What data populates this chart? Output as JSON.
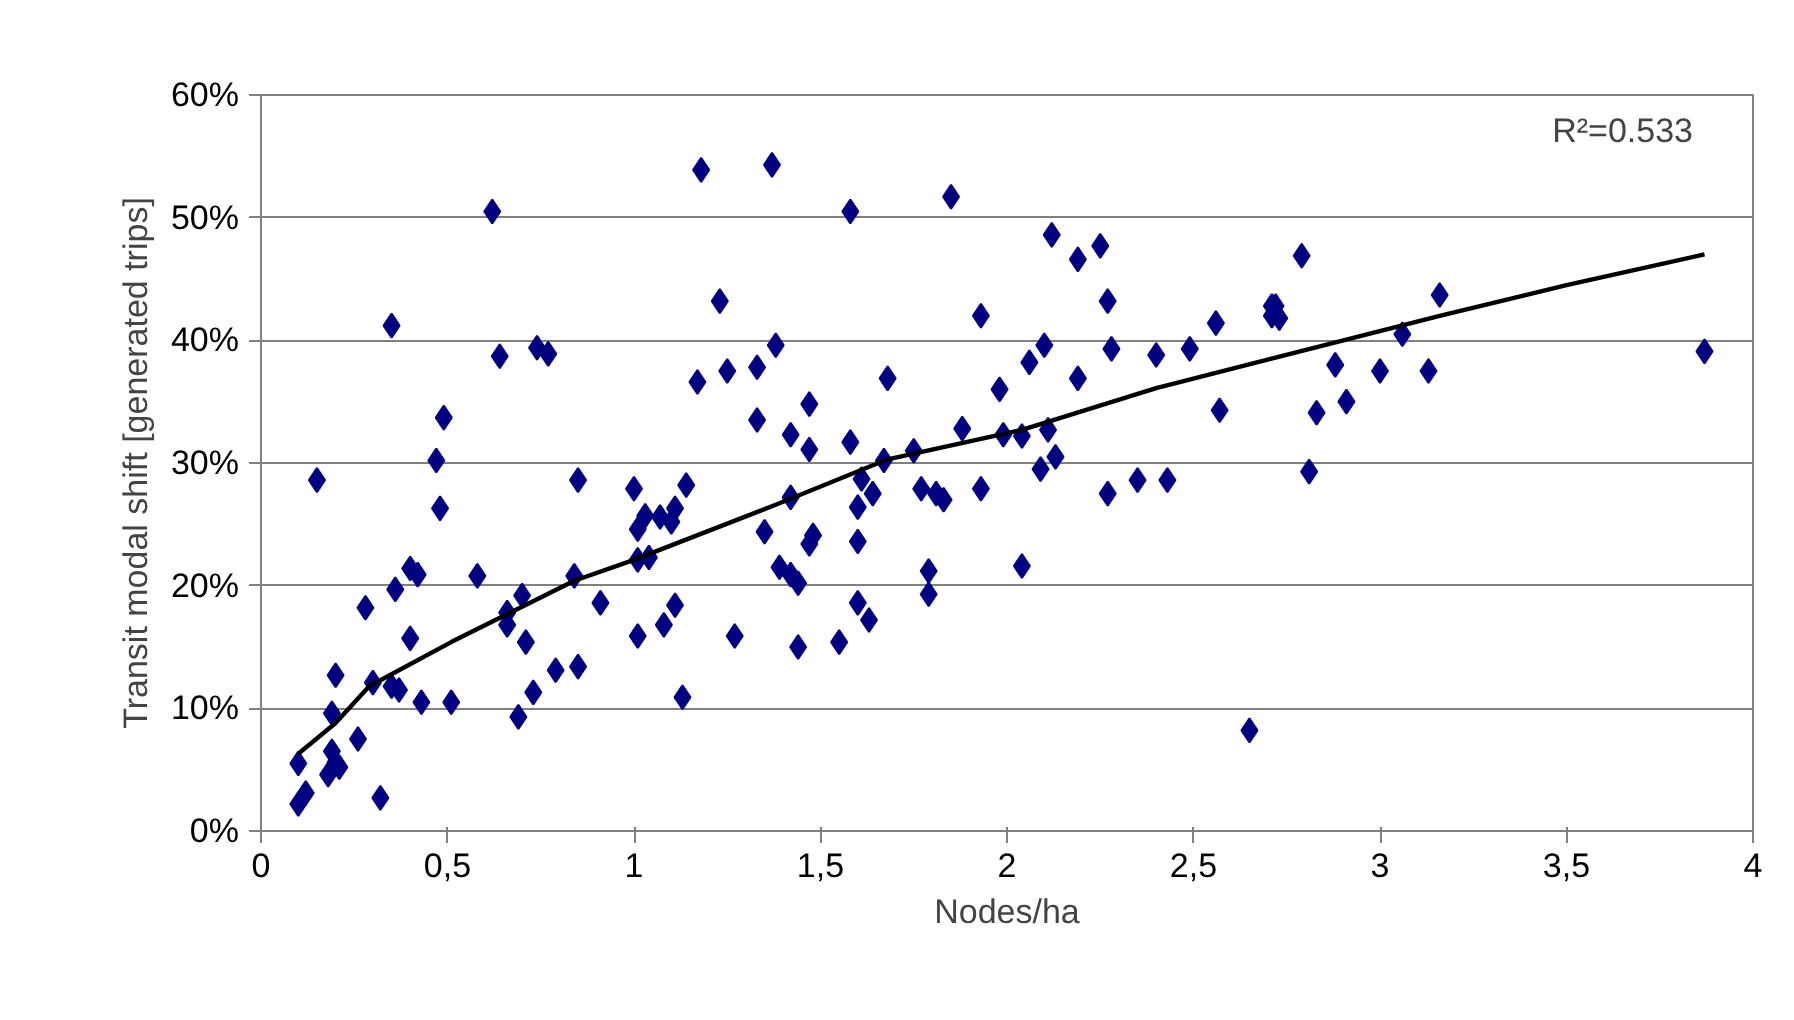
{
  "chart_data": {
    "type": "scatter",
    "xlabel": "Nodes/ha",
    "ylabel": "Transit modal shift [generated trips]",
    "annotations": [
      "R²=0.533"
    ],
    "xlim": [
      0,
      4
    ],
    "ylim": [
      0,
      60
    ],
    "xticks": [
      0,
      {
        "value": 0.5,
        "label": "0,5"
      },
      1,
      {
        "value": 1.5,
        "label": "1,5"
      },
      2,
      {
        "value": 2.5,
        "label": "2,5"
      },
      3,
      {
        "value": 3.5,
        "label": "3,5"
      },
      4
    ],
    "yticks": [
      {
        "value": 0,
        "label": "0%"
      },
      {
        "value": 10,
        "label": "10%"
      },
      {
        "value": 20,
        "label": "20%"
      },
      {
        "value": 30,
        "label": "30%"
      },
      {
        "value": 40,
        "label": "40%"
      },
      {
        "value": 50,
        "label": "50%"
      },
      {
        "value": 60,
        "label": "60%"
      }
    ],
    "grid": "y",
    "series": [
      {
        "color": "#000080",
        "marker": "diamond",
        "x": [
          1.18,
          1.37,
          0.62,
          1.23,
          0.35,
          0.64,
          0.74,
          0.77,
          1.17,
          1.25,
          1.33,
          0.49,
          1.33,
          0.47,
          0.15,
          0.85,
          1.0,
          1.14,
          0.48,
          1.03,
          1.07,
          1.11,
          1.1,
          1.01,
          1.35,
          1.01,
          1.04,
          0.4,
          0.42,
          0.58,
          0.84,
          0.36,
          0.7,
          0.28,
          0.91,
          0.66,
          0.66,
          1.11,
          1.08,
          0.4,
          0.71,
          1.01,
          1.27,
          0.2,
          0.3,
          0.35,
          0.37,
          0.79,
          0.85,
          0.73,
          0.43,
          0.51,
          1.13,
          0.19,
          0.69,
          0.26,
          0.19,
          0.1,
          0.2,
          0.21,
          0.18,
          0.32,
          0.12,
          0.1,
          1.58,
          1.85,
          2.12,
          2.19,
          2.25,
          2.27,
          1.93,
          2.56,
          1.38,
          2.1,
          2.06,
          2.28,
          2.4,
          2.49,
          1.68,
          2.19,
          1.98,
          1.47,
          2.57,
          1.42,
          1.47,
          1.58,
          1.88,
          1.99,
          2.04,
          2.11,
          1.75,
          1.67,
          2.09,
          2.13,
          1.61,
          1.42,
          1.64,
          1.77,
          1.81,
          1.83,
          1.93,
          1.6,
          2.27,
          2.35,
          2.43,
          1.47,
          1.48,
          1.6,
          1.39,
          1.42,
          1.44,
          1.79,
          1.79,
          2.04,
          1.6,
          1.63,
          1.44,
          1.55,
          2.65,
          2.71,
          2.71,
          2.79,
          2.72,
          2.73,
          3.16,
          3.06,
          2.88,
          3.0,
          3.13,
          2.91,
          2.83,
          2.81,
          3.87
        ],
        "values": [
          53.9,
          54.3,
          50.5,
          43.2,
          41.2,
          38.7,
          39.4,
          38.9,
          36.6,
          37.5,
          37.8,
          33.7,
          33.5,
          30.2,
          28.6,
          28.6,
          27.9,
          28.2,
          26.3,
          25.7,
          25.6,
          26.3,
          25.2,
          24.6,
          24.4,
          22.1,
          22.3,
          21.4,
          20.9,
          20.8,
          20.8,
          19.7,
          19.2,
          18.2,
          18.6,
          17.8,
          16.8,
          18.4,
          16.8,
          15.7,
          15.4,
          15.9,
          15.9,
          12.7,
          12.1,
          11.8,
          11.5,
          13.1,
          13.4,
          11.3,
          10.5,
          10.5,
          10.9,
          9.6,
          9.3,
          7.5,
          6.5,
          5.5,
          5.6,
          5.2,
          4.6,
          2.7,
          3.1,
          2.2,
          50.5,
          51.7,
          48.6,
          46.6,
          47.7,
          43.2,
          42.0,
          41.4,
          39.6,
          39.6,
          38.2,
          39.3,
          38.8,
          39.3,
          36.9,
          36.9,
          36.0,
          34.8,
          34.3,
          32.3,
          31.1,
          31.7,
          32.8,
          32.3,
          32.2,
          32.7,
          31.0,
          30.2,
          29.5,
          30.5,
          28.7,
          27.2,
          27.5,
          27.9,
          27.5,
          27.0,
          27.9,
          26.4,
          27.5,
          28.6,
          28.6,
          23.4,
          24.1,
          23.6,
          21.5,
          20.9,
          20.2,
          21.2,
          19.3,
          21.6,
          18.6,
          17.2,
          15.0,
          15.4,
          8.2,
          42.8,
          42.0,
          46.9,
          42.8,
          41.8,
          43.7,
          40.5,
          38.0,
          37.5,
          37.5,
          35.0,
          34.1,
          29.3,
          39.1
        ]
      },
      {
        "type": "line",
        "color": "#000000",
        "marker": "none",
        "x": [
          0.1,
          0.2,
          0.29,
          0.51,
          0.84,
          1.0,
          1.38,
          1.68,
          2.04,
          2.4,
          2.72,
          3.16,
          3.5,
          3.87
        ],
        "values": [
          6.3,
          8.8,
          11.8,
          15.4,
          20.4,
          22.1,
          26.6,
          30.3,
          32.7,
          36.1,
          38.6,
          42.0,
          44.5,
          47.0
        ]
      }
    ]
  }
}
